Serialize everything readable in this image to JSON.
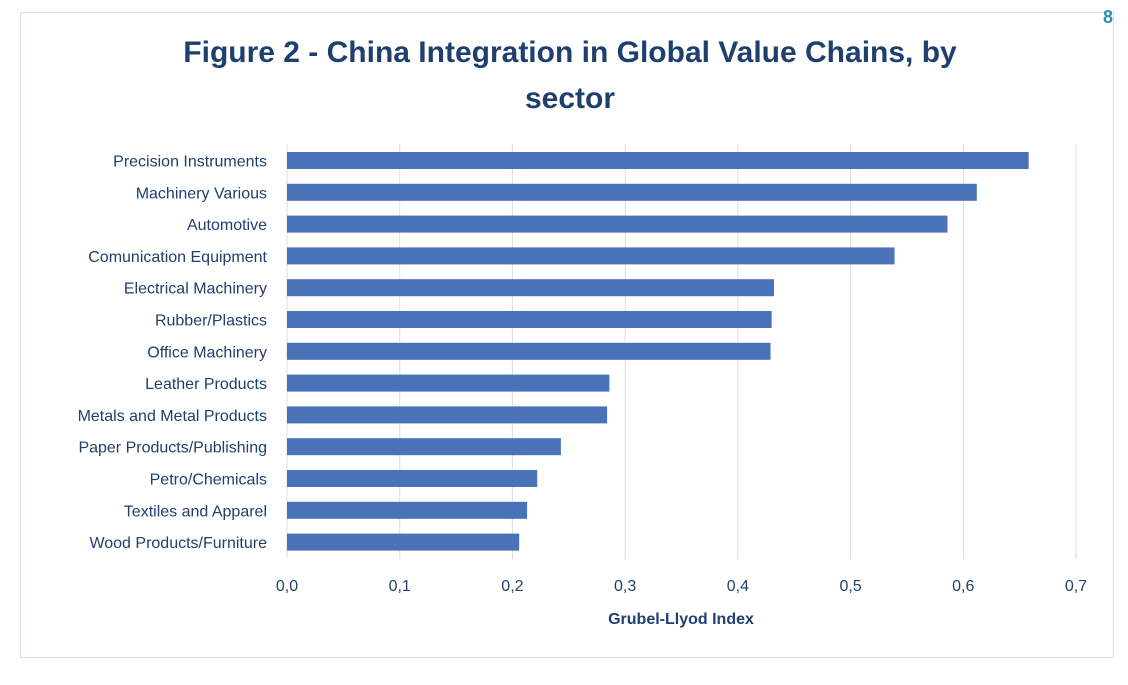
{
  "page": {
    "corner_mark": "8"
  },
  "chart_data": {
    "type": "bar",
    "orientation": "horizontal",
    "title_line1": "Figure 2 - China Integration in Global Value Chains, by",
    "title_line2": "sector",
    "xlabel": "Grubel-Llyod Index",
    "ylabel": "",
    "xlim": [
      0,
      0.7
    ],
    "xticks": [
      "0,0",
      "0,1",
      "0,2",
      "0,3",
      "0,4",
      "0,5",
      "0,6",
      "0,7"
    ],
    "grid": true,
    "bar_color": "#4a72b8",
    "categories": [
      "Precision Instruments",
      "Machinery Various",
      "Automotive",
      "Comunication Equipment",
      "Electrical Machinery",
      "Rubber/Plastics",
      "Office Machinery",
      "Leather Products",
      "Metals and Metal Products",
      "Paper Products/Publishing",
      "Petro/Chemicals",
      "Textiles and Apparel",
      "Wood Products/Furniture"
    ],
    "values": [
      0.658,
      0.612,
      0.586,
      0.539,
      0.432,
      0.43,
      0.429,
      0.286,
      0.284,
      0.243,
      0.222,
      0.213,
      0.206
    ]
  }
}
